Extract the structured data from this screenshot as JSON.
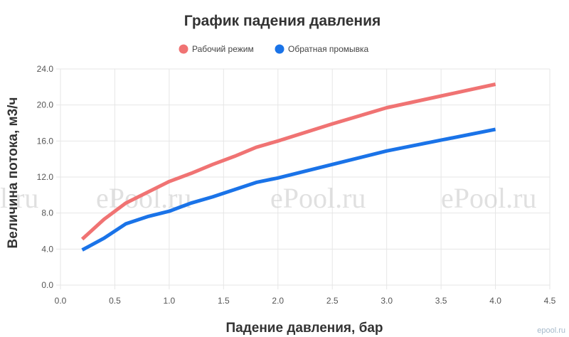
{
  "chart_data": {
    "type": "line",
    "title": "График падения давления",
    "xlabel": "Падение давления, бар",
    "ylabel": "Величина потока, м3/ч",
    "xlim": [
      0,
      4.5
    ],
    "ylim": [
      0,
      24
    ],
    "x_ticks": [
      "0.0",
      "0.5",
      "1.0",
      "1.5",
      "2.0",
      "2.5",
      "3.0",
      "3.5",
      "4.0",
      "4.5"
    ],
    "y_ticks": [
      "0.0",
      "4.0",
      "8.0",
      "12.0",
      "16.0",
      "20.0",
      "24.0"
    ],
    "grid": true,
    "legend_position": "top",
    "series": [
      {
        "name": "Рабочий режим",
        "color": "#f07373",
        "x": [
          0.2,
          0.4,
          0.6,
          0.8,
          1.0,
          1.2,
          1.4,
          1.6,
          1.8,
          2.0,
          2.5,
          3.0,
          3.5,
          4.0
        ],
        "y": [
          5.1,
          7.3,
          9.1,
          10.3,
          11.5,
          12.4,
          13.4,
          14.3,
          15.3,
          16.0,
          17.9,
          19.7,
          21.0,
          22.3
        ]
      },
      {
        "name": "Обратная промывка",
        "color": "#1a73e8",
        "x": [
          0.2,
          0.4,
          0.6,
          0.8,
          1.0,
          1.2,
          1.4,
          1.6,
          1.8,
          2.0,
          2.5,
          3.0,
          3.5,
          4.0
        ],
        "y": [
          3.9,
          5.2,
          6.8,
          7.6,
          8.2,
          9.1,
          9.8,
          10.6,
          11.4,
          11.9,
          13.4,
          14.9,
          16.1,
          17.3
        ]
      }
    ]
  },
  "watermark": {
    "texts": [
      "ePool.ru",
      "ePool.ru",
      "ePool.ru"
    ],
    "partial": "l.ru",
    "corner": "epool.ru"
  }
}
